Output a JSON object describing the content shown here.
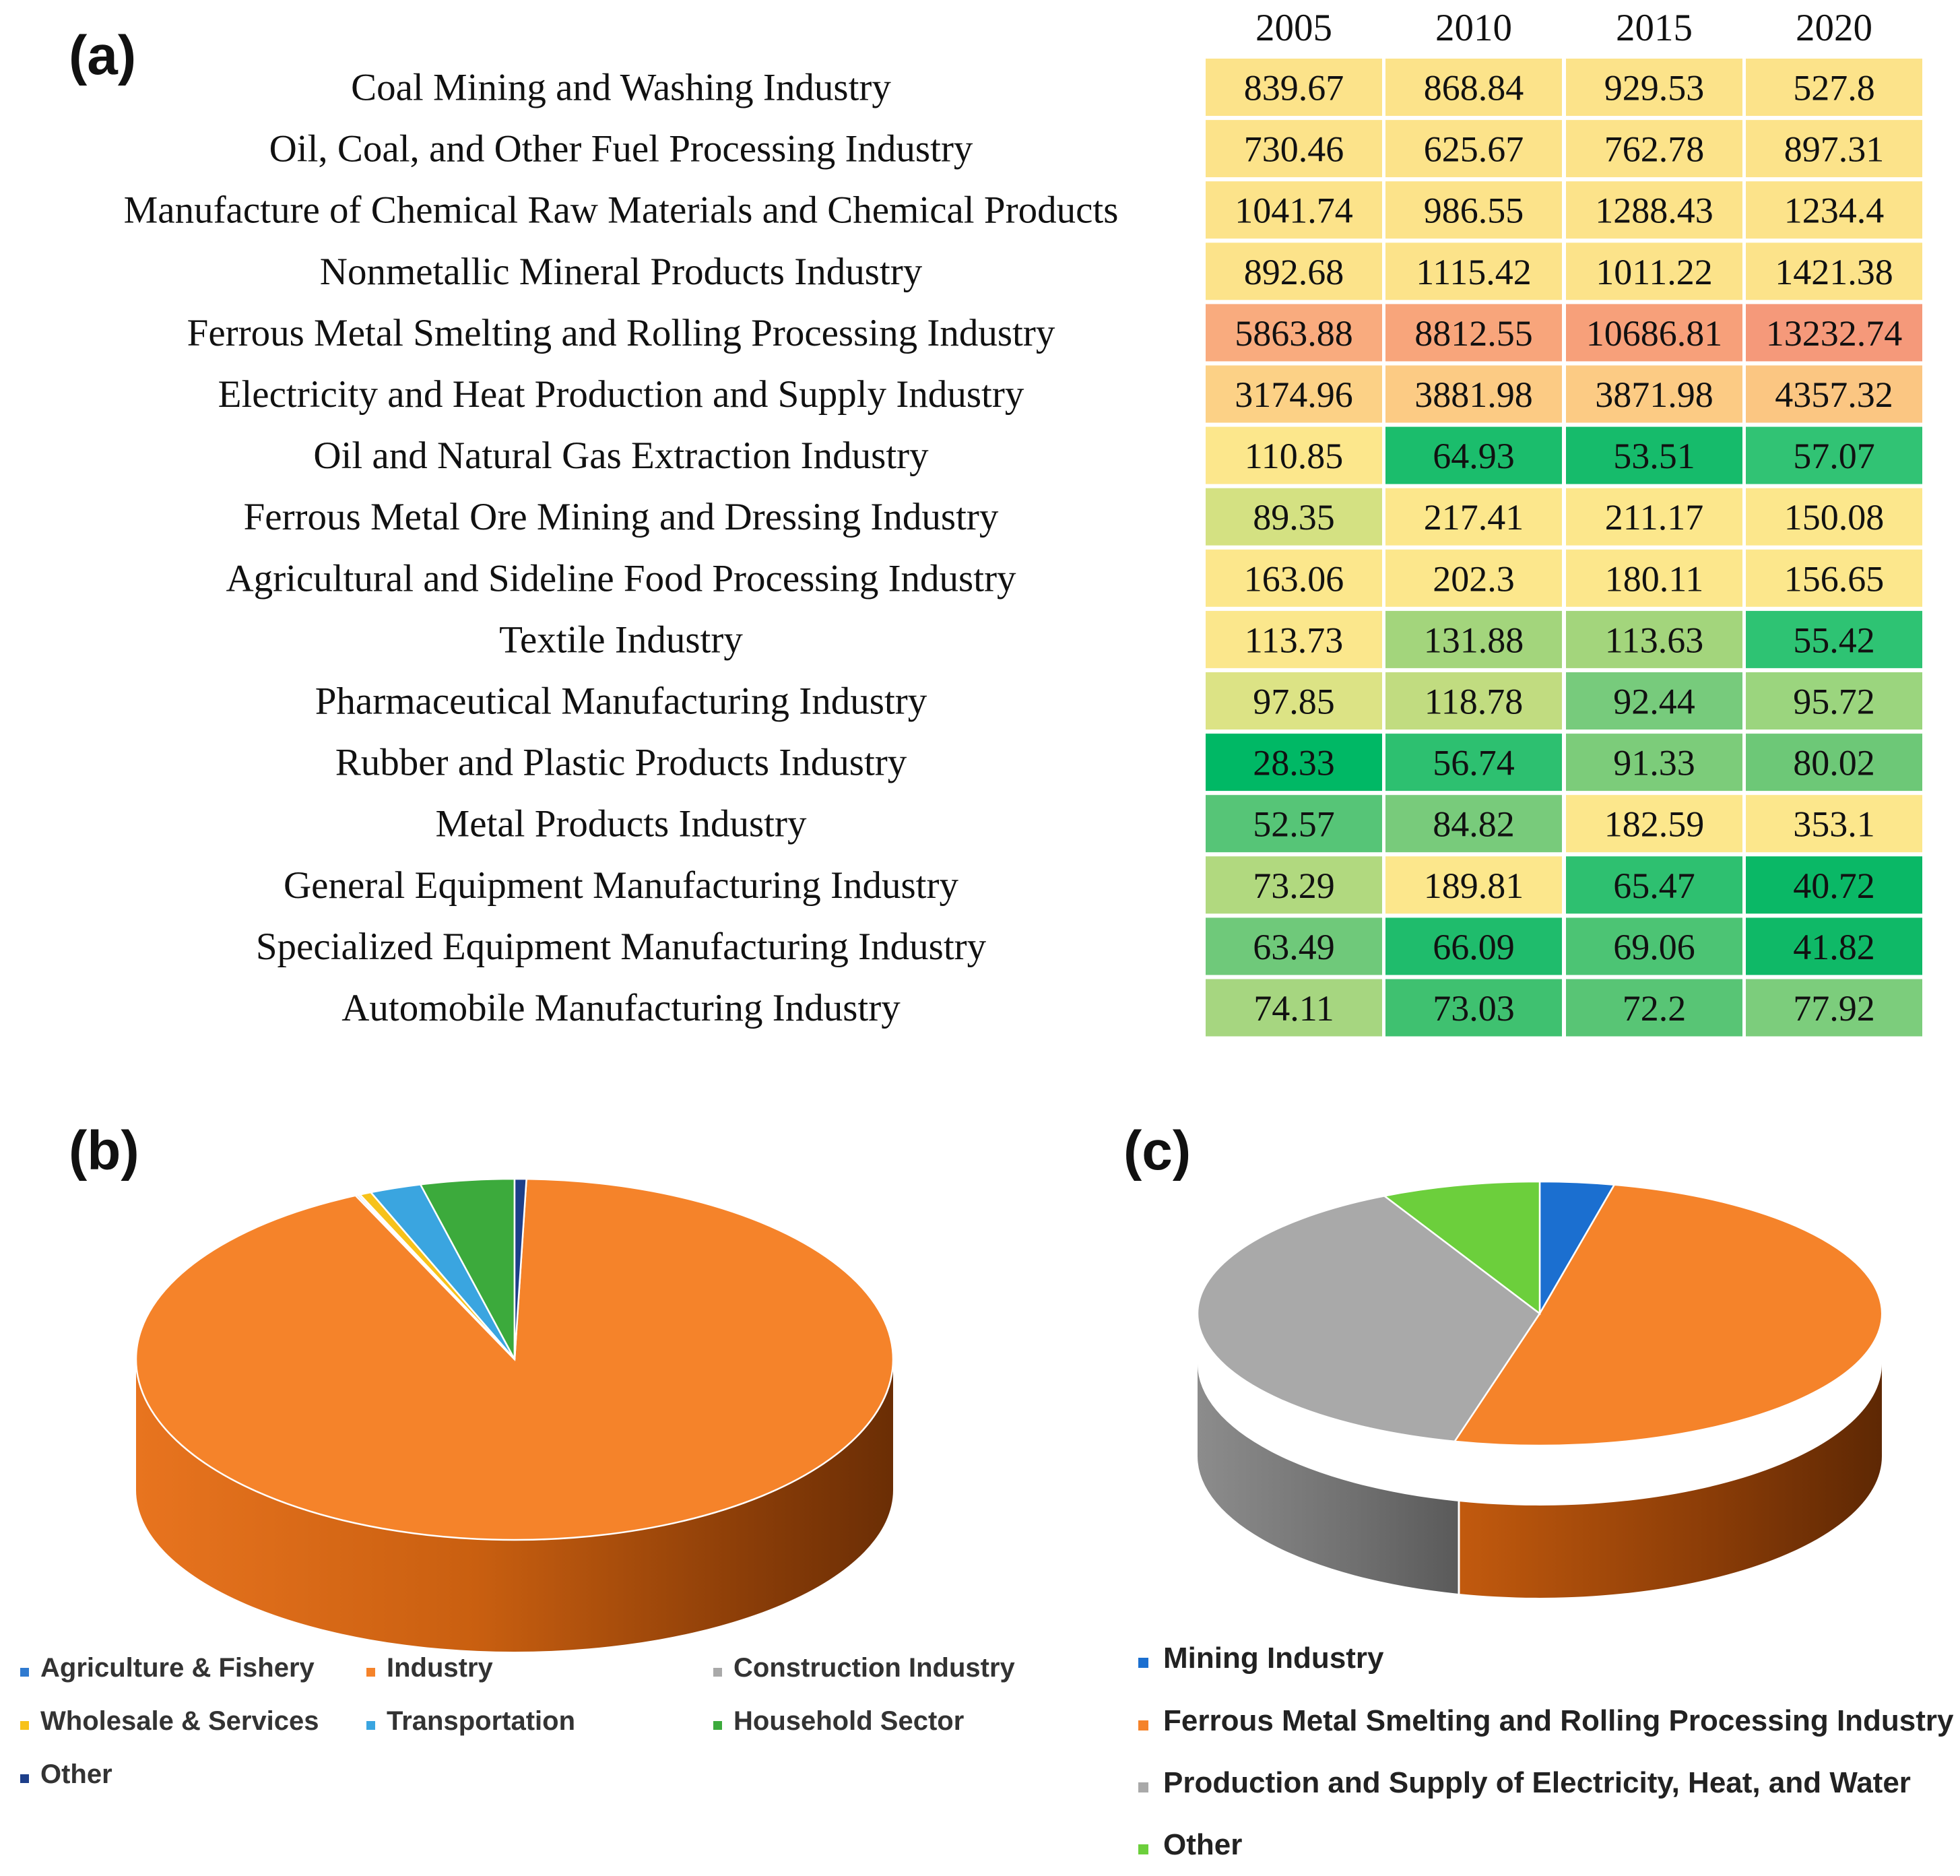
{
  "panels": {
    "a": "(a)",
    "b": "(b)",
    "c": "(c)"
  },
  "chart_data": [
    {
      "type": "heatmap",
      "panel": "(a)",
      "columns": [
        "2005",
        "2010",
        "2015",
        "2020"
      ],
      "rows": [
        {
          "label": "Coal Mining and Washing Industry",
          "values": [
            839.67,
            868.84,
            929.53,
            527.8
          ],
          "display": [
            "839.67",
            "868.84",
            "929.53",
            "527.8"
          ]
        },
        {
          "label": "Oil, Coal, and Other Fuel Processing Industry",
          "values": [
            730.46,
            625.67,
            762.78,
            897.31
          ],
          "display": [
            "730.46",
            "625.67",
            "762.78",
            "897.31"
          ]
        },
        {
          "label": "Manufacture of Chemical Raw Materials and Chemical Products",
          "values": [
            1041.74,
            986.55,
            1288.43,
            1234.4
          ],
          "display": [
            "1041.74",
            "986.55",
            "1288.43",
            "1234.4"
          ]
        },
        {
          "label": "Nonmetallic Mineral Products Industry",
          "values": [
            892.68,
            1115.42,
            1011.22,
            1421.38
          ],
          "display": [
            "892.68",
            "1115.42",
            "1011.22",
            "1421.38"
          ]
        },
        {
          "label": "Ferrous Metal Smelting and Rolling Processing Industry",
          "values": [
            5863.88,
            8812.55,
            10686.81,
            13232.74
          ],
          "display": [
            "5863.88",
            "8812.55",
            "10686.81",
            "13232.74"
          ]
        },
        {
          "label": "Electricity and Heat Production and Supply Industry",
          "values": [
            3174.96,
            3881.98,
            3871.98,
            4357.32
          ],
          "display": [
            "3174.96",
            "3881.98",
            "3871.98",
            "4357.32"
          ]
        },
        {
          "label": "Oil and Natural Gas Extraction Industry",
          "values": [
            110.85,
            64.93,
            53.51,
            57.07
          ],
          "display": [
            "110.85",
            "64.93",
            "53.51",
            "57.07"
          ]
        },
        {
          "label": "Ferrous Metal Ore Mining and Dressing Industry",
          "values": [
            89.35,
            217.41,
            211.17,
            150.08
          ],
          "display": [
            "89.35",
            "217.41",
            "211.17",
            "150.08"
          ]
        },
        {
          "label": "Agricultural and Sideline Food Processing Industry",
          "values": [
            163.06,
            202.3,
            180.11,
            156.65
          ],
          "display": [
            "163.06",
            "202.3",
            "180.11",
            "156.65"
          ]
        },
        {
          "label": "Textile Industry",
          "values": [
            113.73,
            131.88,
            113.63,
            55.42
          ],
          "display": [
            "113.73",
            "131.88",
            "113.63",
            "55.42"
          ]
        },
        {
          "label": "Pharmaceutical Manufacturing Industry",
          "values": [
            97.85,
            118.78,
            92.44,
            95.72
          ],
          "display": [
            "97.85",
            "118.78",
            "92.44",
            "95.72"
          ]
        },
        {
          "label": "Rubber and Plastic Products Industry",
          "values": [
            28.33,
            56.74,
            91.33,
            80.02
          ],
          "display": [
            "28.33",
            "56.74",
            "91.33",
            "80.02"
          ]
        },
        {
          "label": "Metal Products Industry",
          "values": [
            52.57,
            84.82,
            182.59,
            353.1
          ],
          "display": [
            "52.57",
            "84.82",
            "182.59",
            "353.1"
          ]
        },
        {
          "label": "General Equipment Manufacturing Industry",
          "values": [
            73.29,
            189.81,
            65.47,
            40.72
          ],
          "display": [
            "73.29",
            "189.81",
            "65.47",
            "40.72"
          ]
        },
        {
          "label": "Specialized Equipment Manufacturing Industry",
          "values": [
            63.49,
            66.09,
            69.06,
            41.82
          ],
          "display": [
            "63.49",
            "66.09",
            "69.06",
            "41.82"
          ]
        },
        {
          "label": "Automobile Manufacturing Industry",
          "values": [
            74.11,
            73.03,
            72.2,
            77.92
          ],
          "display": [
            "74.11",
            "73.03",
            "72.2",
            "77.92"
          ]
        }
      ],
      "cell_colors": [
        [
          "#fce38a",
          "#fce38a",
          "#fce38a",
          "#fce38a"
        ],
        [
          "#fce38a",
          "#fce38a",
          "#fce38a",
          "#fce38a"
        ],
        [
          "#fce38a",
          "#fce38a",
          "#fce38a",
          "#fce38a"
        ],
        [
          "#fce38a",
          "#fce38a",
          "#fce38a",
          "#fce38a"
        ],
        [
          "#f9ab7e",
          "#f8a57b",
          "#f7a07a",
          "#f5997a"
        ],
        [
          "#fcd186",
          "#fccb84",
          "#fccb84",
          "#fbc682"
        ],
        [
          "#fce78c",
          "#1bbd6c",
          "#16bb6b",
          "#31c374"
        ],
        [
          "#d4e182",
          "#fce78c",
          "#fce78c",
          "#fce78c"
        ],
        [
          "#fce78c",
          "#fce78c",
          "#fce78c",
          "#fce78c"
        ],
        [
          "#fbe78c",
          "#a3d57c",
          "#a3d57c",
          "#2ec373"
        ],
        [
          "#dce385",
          "#c1dc80",
          "#77cb7c",
          "#9bd57e"
        ],
        [
          "#00b865",
          "#2dc070",
          "#7ccc7a",
          "#6dc877"
        ],
        [
          "#56c577",
          "#78cb7b",
          "#fce78c",
          "#fce78c"
        ],
        [
          "#b1d97f",
          "#fce78c",
          "#2ec070",
          "#0ab866"
        ],
        [
          "#6fc97a",
          "#1fbc6c",
          "#4cc474",
          "#0fb967"
        ],
        [
          "#a6d680",
          "#3fc170",
          "#58c575",
          "#7ccd7c"
        ]
      ]
    },
    {
      "type": "pie",
      "panel": "(b)",
      "labels": [
        "Agriculture & Fishery",
        "Industry",
        "Construction Industry",
        "Wholesale & Services",
        "Transportation",
        "Household Sector",
        "Other"
      ],
      "values": [
        0.1,
        92.6,
        0.1,
        0.5,
        2.2,
        4.0,
        0.5
      ],
      "colors": [
        "#2f7ad0",
        "#f5832a",
        "#a9a9a9",
        "#f7c21a",
        "#3aa5e0",
        "#3caa3c",
        "#1d3f8a"
      ],
      "legend": "bottom"
    },
    {
      "type": "pie",
      "panel": "(c)",
      "labels": [
        "Mining Industry",
        "Ferrous Metal Smelting and Rolling Processing Industry",
        "Production and Supply of Electricity, Heat, and Water",
        "Other"
      ],
      "values": [
        3.5,
        50.5,
        38.5,
        7.5
      ],
      "colors": [
        "#1b6fd0",
        "#f5832a",
        "#a9a9a9",
        "#6ccf3c"
      ],
      "legend": "bottom"
    }
  ]
}
